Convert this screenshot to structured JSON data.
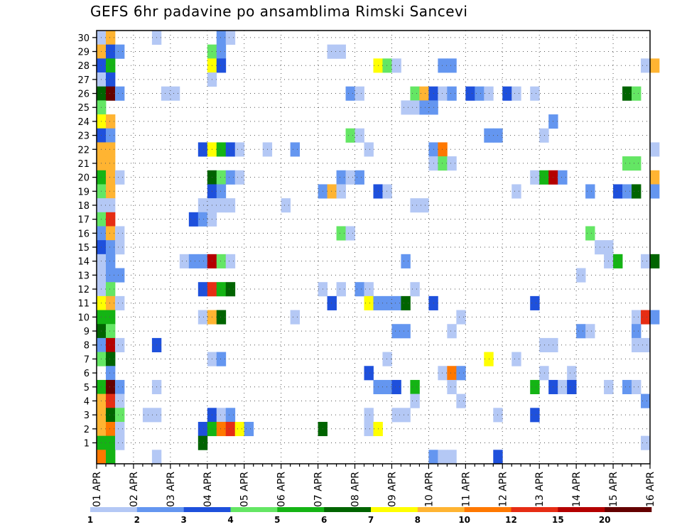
{
  "chart_data": {
    "type": "heatmap",
    "title": "GEFS 6hr padavine po ansamblima Rimski Sancevi",
    "x_tick_labels": [
      "01 APR",
      "02 APR",
      "03 APR",
      "04 APR",
      "05 APR",
      "06 APR",
      "07 APR",
      "08 APR",
      "09 APR",
      "10 APR",
      "11 APR",
      "12 APR",
      "13 APR",
      "14 APR",
      "15 APR",
      "16 APR"
    ],
    "y_tick_labels": [
      "1",
      "2",
      "3",
      "4",
      "5",
      "6",
      "7",
      "8",
      "9",
      "10",
      "11",
      "12",
      "13",
      "14",
      "15",
      "16",
      "17",
      "18",
      "19",
      "20",
      "21",
      "22",
      "23",
      "24",
      "25",
      "26",
      "27",
      "28",
      "29",
      "30"
    ],
    "x_range": [
      "01 APR 00Z",
      "16 APR 00Z"
    ],
    "y_range": [
      0,
      30
    ],
    "step": "6hr",
    "grid": true,
    "colorbar": {
      "labels": [
        "1",
        "2",
        "3",
        "4",
        "5",
        "6",
        "7",
        "8",
        "10",
        "12",
        "15",
        "20"
      ],
      "colors": [
        "#b4c8f5",
        "#6496f0",
        "#1e50dc",
        "#64e664",
        "#14b414",
        "#006400",
        "#ffff00",
        "#ffb432",
        "#ff7800",
        "#e62d14",
        "#b40000",
        "#640000"
      ]
    },
    "member_rows": [
      {
        "member": 30,
        "cells": [
          [
            0,
            1
          ],
          [
            1,
            8
          ],
          [
            6,
            1
          ],
          [
            13,
            2
          ],
          [
            14,
            1
          ]
        ]
      },
      {
        "member": 29,
        "cells": [
          [
            0,
            8
          ],
          [
            1,
            3
          ],
          [
            2,
            2
          ],
          [
            12,
            4
          ],
          [
            13,
            2
          ],
          [
            25,
            1
          ],
          [
            26,
            1
          ]
        ]
      },
      {
        "member": 28,
        "cells": [
          [
            0,
            3
          ],
          [
            1,
            5
          ],
          [
            12,
            7
          ],
          [
            13,
            3
          ],
          [
            30,
            7
          ],
          [
            31,
            4
          ],
          [
            32,
            1
          ],
          [
            37,
            2
          ],
          [
            38,
            2
          ],
          [
            59,
            1
          ],
          [
            60,
            8
          ]
        ]
      },
      {
        "member": 27,
        "cells": [
          [
            0,
            1
          ],
          [
            1,
            3
          ],
          [
            12,
            1
          ]
        ]
      },
      {
        "member": 26,
        "cells": [
          [
            0,
            6
          ],
          [
            1,
            12
          ],
          [
            2,
            2
          ],
          [
            7,
            1
          ],
          [
            8,
            1
          ],
          [
            27,
            2
          ],
          [
            28,
            1
          ],
          [
            34,
            4
          ],
          [
            35,
            8
          ],
          [
            36,
            3
          ],
          [
            37,
            1
          ],
          [
            38,
            2
          ],
          [
            40,
            3
          ],
          [
            41,
            2
          ],
          [
            42,
            1
          ],
          [
            44,
            3
          ],
          [
            45,
            1
          ],
          [
            47,
            1
          ],
          [
            57,
            6
          ],
          [
            58,
            4
          ]
        ]
      },
      {
        "member": 25,
        "cells": [
          [
            0,
            4
          ],
          [
            33,
            1
          ],
          [
            34,
            1
          ],
          [
            35,
            2
          ],
          [
            36,
            2
          ]
        ]
      },
      {
        "member": 24,
        "cells": [
          [
            0,
            7
          ],
          [
            1,
            8
          ],
          [
            49,
            2
          ]
        ]
      },
      {
        "member": 23,
        "cells": [
          [
            0,
            3
          ],
          [
            1,
            2
          ],
          [
            27,
            4
          ],
          [
            28,
            1
          ],
          [
            42,
            2
          ],
          [
            43,
            2
          ],
          [
            48,
            1
          ]
        ]
      },
      {
        "member": 22,
        "cells": [
          [
            0,
            8
          ],
          [
            1,
            8
          ],
          [
            11,
            3
          ],
          [
            12,
            7
          ],
          [
            13,
            5
          ],
          [
            14,
            3
          ],
          [
            15,
            1
          ],
          [
            18,
            1
          ],
          [
            21,
            2
          ],
          [
            29,
            1
          ],
          [
            36,
            2
          ],
          [
            37,
            9
          ],
          [
            60,
            1
          ]
        ]
      },
      {
        "member": 21,
        "cells": [
          [
            0,
            8
          ],
          [
            1,
            8
          ],
          [
            36,
            1
          ],
          [
            37,
            4
          ],
          [
            38,
            1
          ],
          [
            57,
            4
          ],
          [
            58,
            4
          ]
        ]
      },
      {
        "member": 20,
        "cells": [
          [
            0,
            5
          ],
          [
            1,
            8
          ],
          [
            2,
            1
          ],
          [
            12,
            6
          ],
          [
            13,
            4
          ],
          [
            14,
            2
          ],
          [
            15,
            1
          ],
          [
            26,
            2
          ],
          [
            27,
            1
          ],
          [
            28,
            2
          ],
          [
            47,
            1
          ],
          [
            48,
            5
          ],
          [
            49,
            11
          ],
          [
            50,
            2
          ],
          [
            60,
            8
          ]
        ]
      },
      {
        "member": 19,
        "cells": [
          [
            0,
            4
          ],
          [
            1,
            8
          ],
          [
            12,
            3
          ],
          [
            13,
            2
          ],
          [
            24,
            2
          ],
          [
            25,
            8
          ],
          [
            26,
            1
          ],
          [
            30,
            3
          ],
          [
            31,
            1
          ],
          [
            45,
            1
          ],
          [
            53,
            2
          ],
          [
            56,
            3
          ],
          [
            57,
            2
          ],
          [
            58,
            6
          ],
          [
            60,
            2
          ]
        ]
      },
      {
        "member": 18,
        "cells": [
          [
            0,
            1
          ],
          [
            1,
            1
          ],
          [
            11,
            1
          ],
          [
            12,
            1
          ],
          [
            13,
            1
          ],
          [
            14,
            1
          ],
          [
            20,
            1
          ],
          [
            34,
            1
          ],
          [
            35,
            1
          ]
        ]
      },
      {
        "member": 17,
        "cells": [
          [
            0,
            4
          ],
          [
            1,
            10
          ],
          [
            10,
            3
          ],
          [
            11,
            2
          ],
          [
            12,
            1
          ]
        ]
      },
      {
        "member": 16,
        "cells": [
          [
            0,
            2
          ],
          [
            1,
            8
          ],
          [
            2,
            1
          ],
          [
            26,
            4
          ],
          [
            27,
            1
          ],
          [
            53,
            4
          ]
        ]
      },
      {
        "member": 15,
        "cells": [
          [
            0,
            3
          ],
          [
            1,
            2
          ],
          [
            2,
            1
          ],
          [
            54,
            1
          ],
          [
            55,
            1
          ]
        ]
      },
      {
        "member": 14,
        "cells": [
          [
            0,
            1
          ],
          [
            1,
            2
          ],
          [
            9,
            1
          ],
          [
            10,
            2
          ],
          [
            11,
            2
          ],
          [
            12,
            11
          ],
          [
            13,
            4
          ],
          [
            14,
            1
          ],
          [
            33,
            2
          ],
          [
            55,
            1
          ],
          [
            56,
            5
          ],
          [
            59,
            1
          ],
          [
            60,
            6
          ]
        ]
      },
      {
        "member": 13,
        "cells": [
          [
            0,
            1
          ],
          [
            1,
            2
          ],
          [
            2,
            2
          ],
          [
            52,
            1
          ]
        ]
      },
      {
        "member": 12,
        "cells": [
          [
            0,
            1
          ],
          [
            1,
            4
          ],
          [
            11,
            3
          ],
          [
            12,
            10
          ],
          [
            13,
            5
          ],
          [
            14,
            6
          ],
          [
            24,
            1
          ],
          [
            26,
            1
          ],
          [
            28,
            2
          ],
          [
            29,
            1
          ],
          [
            34,
            1
          ]
        ]
      },
      {
        "member": 11,
        "cells": [
          [
            0,
            7
          ],
          [
            1,
            8
          ],
          [
            2,
            1
          ],
          [
            25,
            3
          ],
          [
            29,
            7
          ],
          [
            30,
            2
          ],
          [
            31,
            2
          ],
          [
            32,
            2
          ],
          [
            33,
            6
          ],
          [
            36,
            3
          ],
          [
            47,
            3
          ]
        ]
      },
      {
        "member": 10,
        "cells": [
          [
            0,
            5
          ],
          [
            1,
            5
          ],
          [
            11,
            1
          ],
          [
            12,
            8
          ],
          [
            13,
            6
          ],
          [
            21,
            1
          ],
          [
            39,
            1
          ],
          [
            58,
            1
          ],
          [
            59,
            10
          ],
          [
            60,
            2
          ]
        ]
      },
      {
        "member": 9,
        "cells": [
          [
            0,
            6
          ],
          [
            1,
            4
          ],
          [
            32,
            2
          ],
          [
            33,
            2
          ],
          [
            38,
            1
          ],
          [
            52,
            2
          ],
          [
            53,
            1
          ],
          [
            58,
            2
          ]
        ]
      },
      {
        "member": 8,
        "cells": [
          [
            0,
            2
          ],
          [
            1,
            11
          ],
          [
            2,
            1
          ],
          [
            6,
            3
          ],
          [
            48,
            1
          ],
          [
            49,
            1
          ],
          [
            58,
            1
          ],
          [
            59,
            1
          ]
        ]
      },
      {
        "member": 7,
        "cells": [
          [
            0,
            4
          ],
          [
            1,
            6
          ],
          [
            12,
            1
          ],
          [
            13,
            2
          ],
          [
            31,
            1
          ],
          [
            42,
            7
          ],
          [
            45,
            1
          ]
        ]
      },
      {
        "member": 6,
        "cells": [
          [
            1,
            2
          ],
          [
            29,
            3
          ],
          [
            37,
            1
          ],
          [
            38,
            9
          ],
          [
            39,
            2
          ],
          [
            48,
            1
          ],
          [
            51,
            1
          ]
        ]
      },
      {
        "member": 5,
        "cells": [
          [
            0,
            5
          ],
          [
            1,
            12
          ],
          [
            2,
            2
          ],
          [
            6,
            1
          ],
          [
            30,
            2
          ],
          [
            31,
            2
          ],
          [
            32,
            3
          ],
          [
            34,
            5
          ],
          [
            38,
            1
          ],
          [
            47,
            5
          ],
          [
            49,
            3
          ],
          [
            50,
            1
          ],
          [
            51,
            3
          ],
          [
            55,
            1
          ],
          [
            57,
            2
          ],
          [
            58,
            1
          ]
        ]
      },
      {
        "member": 4,
        "cells": [
          [
            0,
            8
          ],
          [
            1,
            10
          ],
          [
            2,
            1
          ],
          [
            34,
            1
          ],
          [
            39,
            1
          ],
          [
            59,
            2
          ]
        ]
      },
      {
        "member": 3,
        "cells": [
          [
            0,
            8
          ],
          [
            1,
            6
          ],
          [
            2,
            4
          ],
          [
            5,
            1
          ],
          [
            6,
            1
          ],
          [
            12,
            3
          ],
          [
            13,
            1
          ],
          [
            14,
            2
          ],
          [
            29,
            1
          ],
          [
            32,
            1
          ],
          [
            33,
            1
          ],
          [
            43,
            1
          ],
          [
            47,
            3
          ]
        ]
      },
      {
        "member": 2,
        "cells": [
          [
            0,
            8
          ],
          [
            1,
            9
          ],
          [
            2,
            1
          ],
          [
            11,
            3
          ],
          [
            12,
            5
          ],
          [
            13,
            9
          ],
          [
            14,
            10
          ],
          [
            15,
            7
          ],
          [
            16,
            2
          ],
          [
            24,
            6
          ],
          [
            29,
            1
          ],
          [
            30,
            7
          ]
        ]
      },
      {
        "member": 1,
        "cells": [
          [
            0,
            5
          ],
          [
            1,
            5
          ],
          [
            2,
            1
          ],
          [
            11,
            6
          ],
          [
            59,
            1
          ]
        ]
      },
      {
        "member": 0,
        "cells": [
          [
            0,
            9
          ],
          [
            1,
            5
          ],
          [
            6,
            1
          ],
          [
            36,
            2
          ],
          [
            37,
            1
          ],
          [
            38,
            1
          ],
          [
            43,
            3
          ]
        ]
      }
    ]
  }
}
